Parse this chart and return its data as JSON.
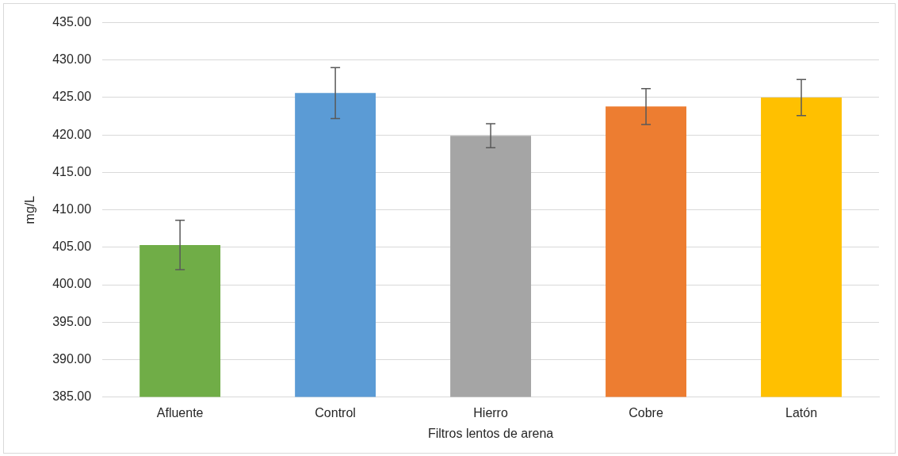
{
  "chart_data": {
    "type": "bar",
    "xlabel": "Filtros lentos de arena",
    "ylabel": "mg/L",
    "categories": [
      "Afluente",
      "Control",
      "Hierro",
      "Cobre",
      "Latón"
    ],
    "values": [
      405.3,
      425.6,
      419.9,
      423.8,
      425.0
    ],
    "colors": [
      "#70ad47",
      "#5b9bd5",
      "#a5a5a5",
      "#ed7d31",
      "#ffc000"
    ],
    "errors": [
      3.3,
      3.4,
      1.6,
      2.4,
      2.4
    ],
    "ylim": [
      385,
      435
    ],
    "yticks": [
      {
        "value": 385,
        "label": "385.00"
      },
      {
        "value": 390,
        "label": "390.00"
      },
      {
        "value": 395,
        "label": "395.00"
      },
      {
        "value": 400,
        "label": "400.00"
      },
      {
        "value": 405,
        "label": "405.00"
      },
      {
        "value": 410,
        "label": "410.00"
      },
      {
        "value": 415,
        "label": "415.00"
      },
      {
        "value": 420,
        "label": "420.00"
      },
      {
        "value": 425,
        "label": "425.00"
      },
      {
        "value": 430,
        "label": "430.00"
      },
      {
        "value": 435,
        "label": "435.00"
      }
    ],
    "grid": "y",
    "legend": false
  }
}
